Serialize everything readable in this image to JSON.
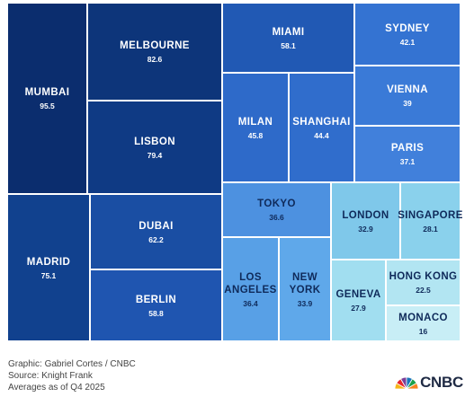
{
  "chart_data": {
    "type": "treemap",
    "items": [
      {
        "name": "MUMBAI",
        "value": 95.5,
        "color": "#0b2d6e",
        "text": "#ffffff"
      },
      {
        "name": "MELBOURNE",
        "value": 82.6,
        "color": "#0d357a",
        "text": "#ffffff"
      },
      {
        "name": "LISBON",
        "value": 79.4,
        "color": "#0f3a84",
        "text": "#ffffff"
      },
      {
        "name": "MADRID",
        "value": 75.1,
        "color": "#11418e",
        "text": "#ffffff"
      },
      {
        "name": "DUBAI",
        "value": 62.2,
        "color": "#1a4ea3",
        "text": "#ffffff"
      },
      {
        "name": "MIAMI",
        "value": 58.1,
        "color": "#2159b4",
        "text": "#ffffff"
      },
      {
        "name": "BERLIN",
        "value": 58.8,
        "color": "#1f55b0",
        "text": "#ffffff"
      },
      {
        "name": "MILAN",
        "value": 45.8,
        "color": "#2e6ac9",
        "text": "#ffffff"
      },
      {
        "name": "SHANGHAI",
        "value": 44.4,
        "color": "#306dcc",
        "text": "#ffffff"
      },
      {
        "name": "SYDNEY",
        "value": 42.1,
        "color": "#3473d2",
        "text": "#ffffff"
      },
      {
        "name": "VIENNA",
        "value": 39,
        "color": "#3a7ad7",
        "text": "#ffffff"
      },
      {
        "name": "PARIS",
        "value": 37.1,
        "color": "#4180db",
        "text": "#ffffff"
      },
      {
        "name": "TOKYO",
        "value": 36.6,
        "color": "#4d91e0",
        "text": "#0f2a5a"
      },
      {
        "name": "LOS\nANGELES",
        "value": 36.4,
        "color": "#58a0e6",
        "text": "#0f2a5a"
      },
      {
        "name": "NEW\nYORK",
        "value": 33.9,
        "color": "#5fa8ea",
        "text": "#0f2a5a"
      },
      {
        "name": "LONDON",
        "value": 32.9,
        "color": "#7fc8ea",
        "text": "#0f2a5a"
      },
      {
        "name": "SINGAPORE",
        "value": 28.1,
        "color": "#8ad1ec",
        "text": "#0f2a5a"
      },
      {
        "name": "GENEVA",
        "value": 27.9,
        "color": "#a1def0",
        "text": "#0f2a5a"
      },
      {
        "name": "HONG KONG",
        "value": 22.5,
        "color": "#b2e5f2",
        "text": "#0f2a5a"
      },
      {
        "name": "MONACO",
        "value": 16,
        "color": "#c8eef6",
        "text": "#0f2a5a"
      }
    ]
  },
  "footer": {
    "graphic": "Graphic: Gabriel Cortes / CNBC",
    "source": "Source: Knight Frank",
    "note": "Averages as of Q4 2025"
  },
  "logo": {
    "text": "CNBC",
    "icon": "nbc-peacock-icon",
    "colors": [
      "#f7b719",
      "#e8262d",
      "#7a3f98",
      "#1a74bc",
      "#1ba14b",
      "#f58220"
    ]
  }
}
